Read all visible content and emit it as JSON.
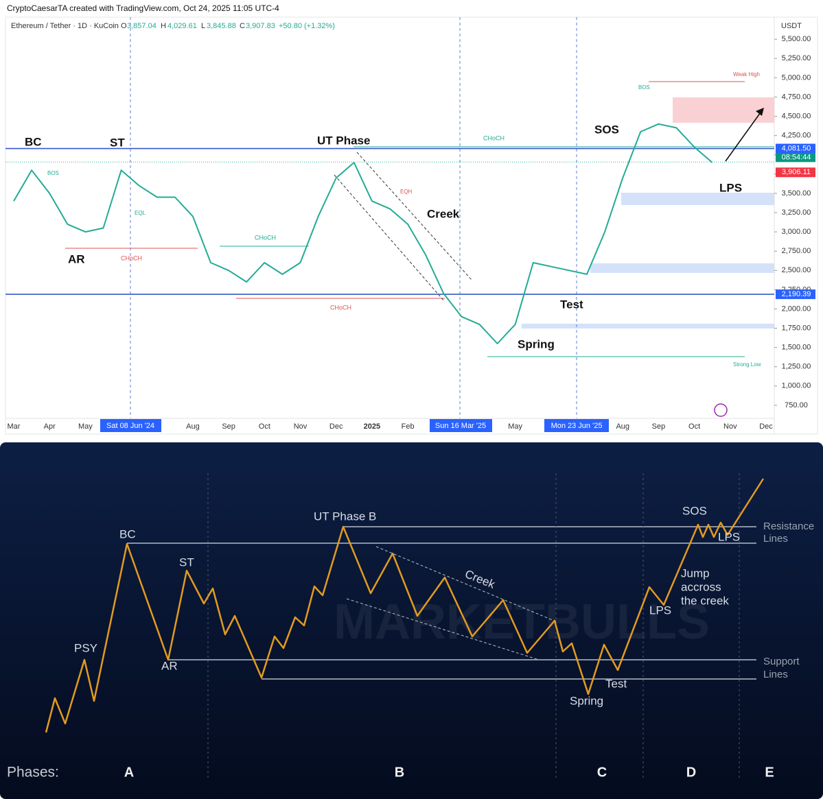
{
  "header": {
    "credit": "CryptoCaesarTA created with TradingView.com, Oct 24, 2025 11:05 UTC-4"
  },
  "chart_data": {
    "type": "line",
    "title": "Ethereum / Tether · 1D · KuCoin",
    "ohlc": {
      "o_key": "O",
      "open": "3,857.04",
      "h_key": "H",
      "high": "4,029.61",
      "l_key": "L",
      "low": "3,845.88",
      "c_key": "C",
      "close": "3,907.83",
      "change": "+50.80 (+1.32%)"
    },
    "unit": "USDT",
    "color": "#22ab94",
    "categories": [
      "Mar",
      null,
      "Apr",
      null,
      "May",
      null,
      null,
      null,
      null,
      null,
      "Aug",
      null,
      "Sep",
      null,
      "Oct",
      null,
      "Nov",
      null,
      "Dec",
      null,
      "2025",
      null,
      "Feb",
      null,
      null,
      null,
      null,
      null,
      "May",
      null,
      null,
      null,
      null,
      null,
      "Aug",
      null,
      "Sep",
      null,
      "Oct",
      null,
      "Nov",
      null,
      "Dec"
    ],
    "values": [
      3400,
      3800,
      3500,
      3100,
      3000,
      3050,
      3800,
      3600,
      3450,
      3450,
      3200,
      2600,
      2500,
      2350,
      2600,
      2450,
      2600,
      3200,
      3700,
      3900,
      3400,
      3300,
      3100,
      2700,
      2200,
      1900,
      1800,
      1550,
      1800,
      2600,
      2550,
      2500,
      2450,
      3000,
      3700,
      4300,
      4400,
      4350,
      4100,
      3900,
      null,
      null,
      null
    ],
    "ylim": [
      580,
      5760
    ],
    "yticks": [
      {
        "value": 750,
        "label": "750.00"
      },
      {
        "value": 1000,
        "label": "1,000.00"
      },
      {
        "value": 1250,
        "label": "1,250.00"
      },
      {
        "value": 1500,
        "label": "1,500.00"
      },
      {
        "value": 1750,
        "label": "1,750.00"
      },
      {
        "value": 2000,
        "label": "2,000.00"
      },
      {
        "value": 2250,
        "label": "2,250.00"
      },
      {
        "value": 2500,
        "label": "2,500.00"
      },
      {
        "value": 2750,
        "label": "2,750.00"
      },
      {
        "value": 3000,
        "label": "3,000.00"
      },
      {
        "value": 3250,
        "label": "3,250.00"
      },
      {
        "value": 3500,
        "label": "3,500.00"
      },
      {
        "value": 3750,
        "label": "3,750.00"
      },
      {
        "value": 4000,
        "label": "4,000.00"
      },
      {
        "value": 4250,
        "label": "4,250.00"
      },
      {
        "value": 4500,
        "label": "4,500.00"
      },
      {
        "value": 4750,
        "label": "4,750.00"
      },
      {
        "value": 5000,
        "label": "5,000.00"
      },
      {
        "value": 5250,
        "label": "5,250.00"
      },
      {
        "value": 5500,
        "label": "5,500.00"
      }
    ],
    "levels": [
      {
        "value": 4081.5,
        "label": "4,081.50"
      },
      {
        "value": 2190.39,
        "label": "2,190.39"
      }
    ],
    "last_price": {
      "value": 3906.11,
      "label": "3,906.11"
    },
    "countdown": "08:54:44",
    "date_markers": [
      "Sat 08 Jun '24",
      "Sun 16 Mar '25",
      "Mon 23 Jun '25"
    ],
    "annotations": [
      "BC",
      "ST",
      "UT Phase",
      "Creek",
      "SOS",
      "LPS",
      "AR",
      "Test",
      "Spring"
    ],
    "small_labels": [
      "Weak High",
      "Strong Low",
      "CHoCH",
      "BOS",
      "EQH",
      "EQL"
    ]
  },
  "schematic": {
    "labels": [
      "PSY",
      "BC",
      "AR",
      "ST",
      "UT Phase B",
      "Creek",
      "Spring",
      "Test",
      "LPS",
      "SOS",
      "LPS"
    ],
    "jump": [
      "Jump",
      "accross",
      "the creek"
    ],
    "resistance": [
      "Resistance",
      "Lines"
    ],
    "support": [
      "Support",
      "Lines"
    ],
    "phases_title": "Phases:",
    "phases": [
      "A",
      "B",
      "C",
      "D",
      "E"
    ],
    "watermark": "MARKETBULLS"
  }
}
